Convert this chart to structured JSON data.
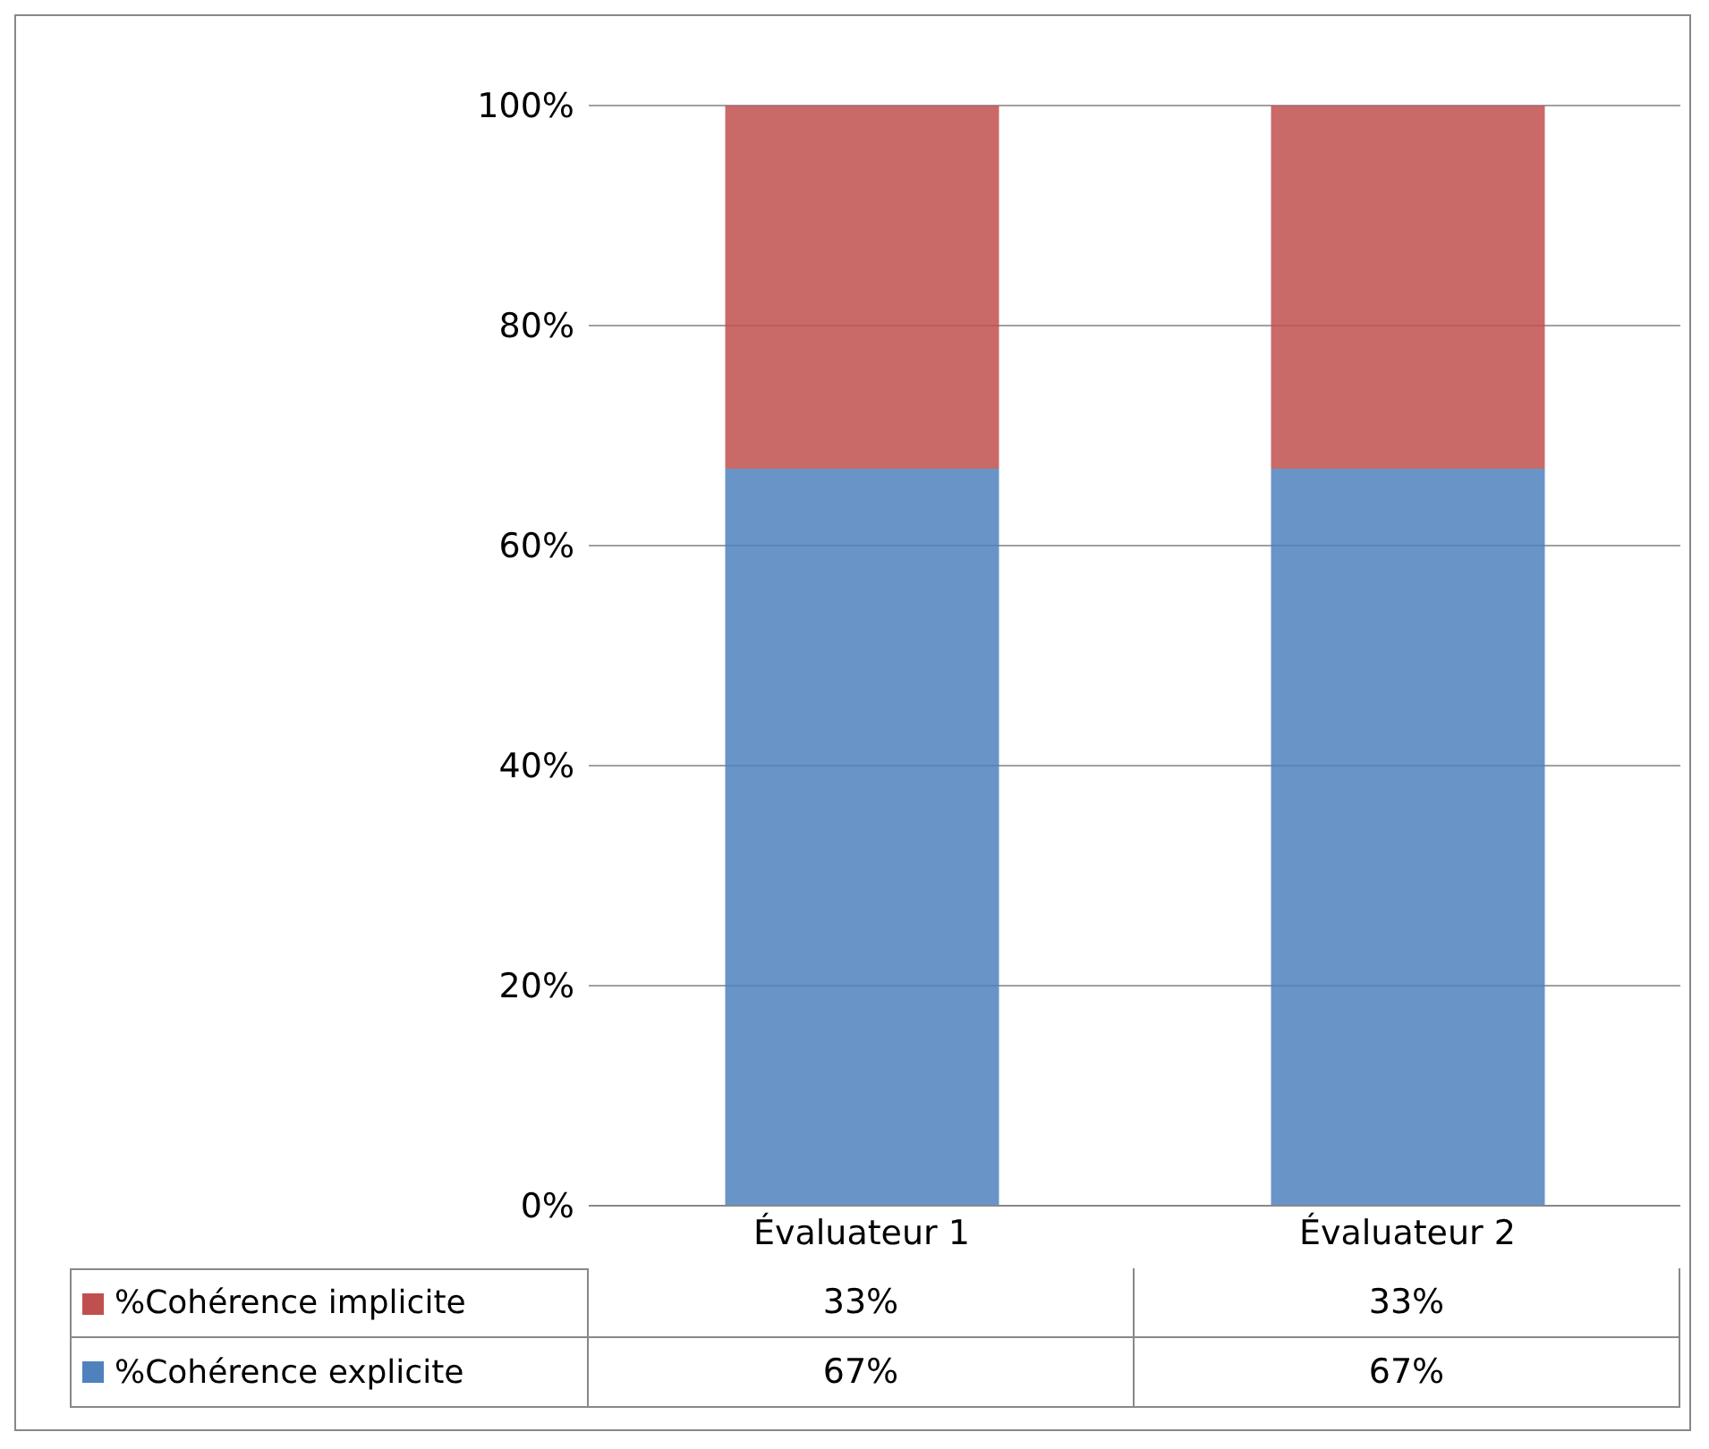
{
  "chart_data": {
    "type": "bar",
    "stacked": true,
    "categories": [
      "Évaluateur 1",
      "Évaluateur 2"
    ],
    "series": [
      {
        "name": "%Cohérence explicite",
        "color": "#4f81bd",
        "values": [
          67,
          67
        ],
        "value_labels": [
          "67%",
          "67%"
        ]
      },
      {
        "name": "%Cohérence implicite",
        "color": "#c0504d",
        "values": [
          33,
          33
        ],
        "value_labels": [
          "33%",
          "33%"
        ]
      }
    ],
    "ylim": [
      0,
      100
    ],
    "yticks": [
      {
        "value": 0,
        "label": "0%"
      },
      {
        "value": 20,
        "label": "20%"
      },
      {
        "value": 40,
        "label": "40%"
      },
      {
        "value": 60,
        "label": "60%"
      },
      {
        "value": 80,
        "label": "80%"
      },
      {
        "value": 100,
        "label": "100%"
      }
    ],
    "grid": "y",
    "legend": "bottom"
  }
}
